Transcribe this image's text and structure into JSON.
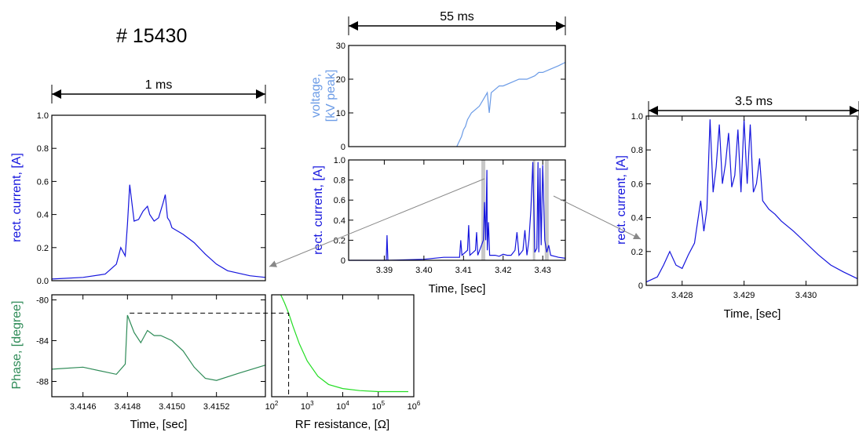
{
  "shot_label": "# 15430",
  "colors": {
    "current": "#1515dd",
    "voltage": "#6b9be6",
    "phase": "#2e8b57",
    "resistance": "#22dd22",
    "highlight": "#c8c8c8"
  },
  "chart_data": [
    {
      "id": "current_zoom_1ms",
      "type": "line",
      "span_label": "1 ms",
      "ylabel": "rect. current, [A]",
      "xlabel": "",
      "xlim": [
        3.41446,
        3.41542
      ],
      "ylim": [
        0,
        1.0
      ],
      "yticks": [
        "0.0",
        "0.2",
        "0.4",
        "0.6",
        "0.8",
        "1.0"
      ],
      "series": [
        {
          "x": [
            3.41446,
            3.4146,
            3.4147,
            3.41475,
            3.41477,
            3.41479,
            3.4148,
            3.41481,
            3.41483,
            3.41485,
            3.41487,
            3.41489,
            3.4149,
            3.41492,
            3.41494,
            3.41496,
            3.41497,
            3.41498,
            3.41499,
            3.415,
            3.41505,
            3.4151,
            3.41515,
            3.4152,
            3.41525,
            3.41535,
            3.41542
          ],
          "y": [
            0.01,
            0.02,
            0.04,
            0.1,
            0.2,
            0.15,
            0.34,
            0.58,
            0.36,
            0.37,
            0.42,
            0.45,
            0.4,
            0.36,
            0.38,
            0.47,
            0.52,
            0.38,
            0.36,
            0.32,
            0.28,
            0.23,
            0.16,
            0.1,
            0.06,
            0.03,
            0.02
          ]
        }
      ]
    },
    {
      "id": "phase",
      "type": "line",
      "ylabel": "Phase, [degree]",
      "xlabel": "Time, [sec]",
      "xlim": [
        3.41446,
        3.41542
      ],
      "ylim": [
        -89.5,
        -79.5
      ],
      "yticks": [
        "-80",
        "-84",
        "-88"
      ],
      "xticks": [
        "3.4146",
        "3.4148",
        "3.4150",
        "3.4152"
      ],
      "reference_phase": -81.3,
      "series": [
        {
          "x": [
            3.41446,
            3.4146,
            3.41475,
            3.41479,
            3.4148,
            3.41483,
            3.41486,
            3.41489,
            3.41492,
            3.41495,
            3.415,
            3.41505,
            3.4151,
            3.41515,
            3.4152,
            3.4153,
            3.41542
          ],
          "y": [
            -86.8,
            -86.6,
            -87.3,
            -86.3,
            -81.5,
            -83.2,
            -84.2,
            -83.0,
            -83.5,
            -83.5,
            -84.0,
            -85.0,
            -86.6,
            -87.7,
            -87.9,
            -87.2,
            -86.4
          ]
        }
      ]
    },
    {
      "id": "rf_resistance",
      "type": "line",
      "xlabel": "RF resistance, [Ω]",
      "xscale": "log",
      "xlim": [
        100,
        1000000
      ],
      "ylim": [
        -89.5,
        -79.5
      ],
      "xticks": [
        {
          "base": "10",
          "exp": "2"
        },
        {
          "base": "10",
          "exp": "3"
        },
        {
          "base": "10",
          "exp": "4"
        },
        {
          "base": "10",
          "exp": "5"
        },
        {
          "base": "10",
          "exp": "6"
        }
      ],
      "reference_resistance": 300,
      "series": [
        {
          "x": [
            180,
            230,
            300,
            400,
            600,
            1000,
            2000,
            4000,
            10000,
            30000,
            100000,
            700000
          ],
          "y": [
            -79.5,
            -80.3,
            -81.3,
            -82.6,
            -84.3,
            -86.0,
            -87.5,
            -88.3,
            -88.7,
            -88.9,
            -89.0,
            -89.0
          ]
        }
      ]
    },
    {
      "id": "voltage",
      "type": "line",
      "span_label": "55 ms",
      "ylabel": "voltage,\n[kV peak]",
      "xlim": [
        3.381,
        3.4357
      ],
      "ylim": [
        0,
        30
      ],
      "yticks": [
        "0",
        "10",
        "20",
        "30"
      ],
      "series": [
        {
          "x": [
            3.4083,
            3.4095,
            3.41,
            3.4105,
            3.411,
            3.412,
            3.413,
            3.414,
            3.415,
            3.416,
            3.4165,
            3.417,
            3.418,
            3.419,
            3.42,
            3.422,
            3.424,
            3.426,
            3.428,
            3.429,
            3.43,
            3.432,
            3.434,
            3.4357
          ],
          "y": [
            0,
            3,
            5,
            6,
            8,
            10,
            11,
            12,
            14,
            16,
            10,
            16,
            17,
            18,
            18,
            19,
            20,
            20,
            21,
            22,
            22,
            23,
            24,
            25
          ]
        }
      ]
    },
    {
      "id": "current_55ms",
      "type": "line",
      "ylabel": "rect. current, [A]",
      "xlabel": "Time, [sec]",
      "xlim": [
        3.381,
        3.4357
      ],
      "ylim": [
        0,
        1.0
      ],
      "yticks": [
        "0",
        "0.2",
        "0.4",
        "0.6",
        "0.8",
        "1.0"
      ],
      "xticks": [
        "3.39",
        "3.40",
        "3.41",
        "3.42",
        "3.43"
      ],
      "highlight_windows": [
        [
          3.4145,
          3.4155
        ],
        [
          3.4275,
          3.428
        ],
        [
          3.4305,
          3.4315
        ]
      ],
      "series": [
        {
          "x": [
            3.381,
            3.3905,
            3.3907,
            3.3909,
            3.4,
            3.405,
            3.409,
            3.4093,
            3.4096,
            3.411,
            3.4113,
            3.4116,
            3.413,
            3.4133,
            3.4136,
            3.415,
            3.4153,
            3.4156,
            3.4159,
            3.416,
            3.4163,
            3.4166,
            3.418,
            3.419,
            3.42,
            3.421,
            3.422,
            3.423,
            3.4235,
            3.424,
            3.425,
            3.4255,
            3.426,
            3.4265,
            3.427,
            3.4275,
            3.428,
            3.4285,
            3.4288,
            3.429,
            3.4293,
            3.4296,
            3.43,
            3.4305,
            3.431,
            3.4315,
            3.432,
            3.434,
            3.4357
          ],
          "y": [
            0.0,
            0.0,
            0.25,
            0.0,
            0.01,
            0.03,
            0.03,
            0.2,
            0.05,
            0.1,
            0.35,
            0.05,
            0.1,
            0.28,
            0.05,
            0.2,
            0.58,
            0.2,
            0.9,
            0.1,
            0.38,
            0.05,
            0.05,
            0.04,
            0.06,
            0.05,
            0.05,
            0.1,
            0.28,
            0.05,
            0.1,
            0.3,
            0.05,
            0.2,
            0.5,
            0.98,
            0.08,
            0.12,
            0.98,
            0.08,
            0.92,
            0.15,
            0.95,
            0.2,
            0.08,
            0.15,
            0.05,
            0.03,
            0.02
          ]
        }
      ]
    },
    {
      "id": "current_zoom_3_5ms",
      "type": "line",
      "span_label": "3.5 ms",
      "ylabel": "rect. current, [A]",
      "xlabel": "Time, [sec]",
      "xlim": [
        3.42742,
        3.43083
      ],
      "ylim": [
        0,
        1.0
      ],
      "yticks": [
        "0",
        "0.2",
        "0.4",
        "0.6",
        "0.8",
        "1.0"
      ],
      "xticks": [
        "3.428",
        "3.429",
        "3.430"
      ],
      "series": [
        {
          "x": [
            3.42742,
            3.4276,
            3.4277,
            3.4278,
            3.4279,
            3.428,
            3.4281,
            3.4282,
            3.4283,
            3.42835,
            3.4284,
            3.42845,
            3.4285,
            3.42855,
            3.4286,
            3.42865,
            3.4287,
            3.42875,
            3.4288,
            3.42885,
            3.4289,
            3.42895,
            3.429,
            3.42905,
            3.4291,
            3.42915,
            3.4292,
            3.42925,
            3.4293,
            3.4294,
            3.4295,
            3.4296,
            3.4298,
            3.43,
            3.4302,
            3.4304,
            3.4306,
            3.43083
          ],
          "y": [
            0.02,
            0.05,
            0.12,
            0.2,
            0.12,
            0.1,
            0.18,
            0.25,
            0.5,
            0.32,
            0.45,
            0.98,
            0.55,
            0.7,
            0.95,
            0.6,
            0.72,
            0.9,
            0.58,
            0.65,
            0.92,
            0.55,
            0.98,
            0.6,
            0.95,
            0.55,
            0.6,
            0.75,
            0.5,
            0.45,
            0.42,
            0.38,
            0.32,
            0.25,
            0.18,
            0.12,
            0.08,
            0.04
          ]
        }
      ]
    }
  ]
}
